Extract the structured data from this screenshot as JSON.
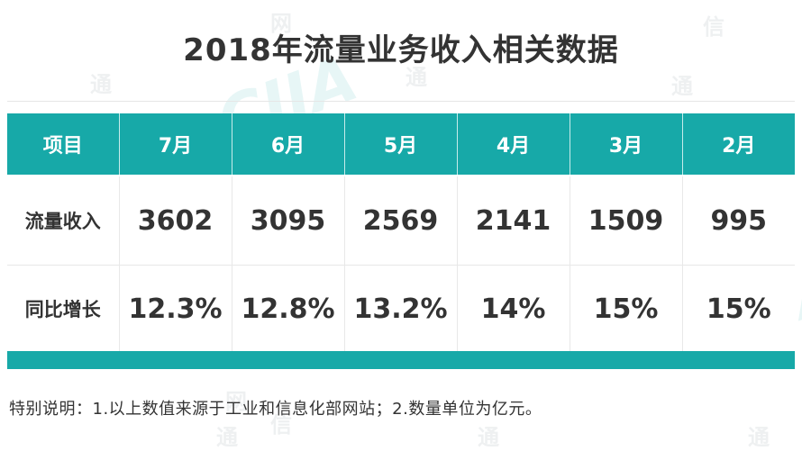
{
  "title": "2018年流量业务收入相关数据",
  "table": {
    "headers": [
      "项目",
      "7月",
      "6月",
      "5月",
      "4月",
      "3月",
      "2月"
    ],
    "rows": [
      {
        "label": "流量收入",
        "values": [
          "3602",
          "3095",
          "2569",
          "2141",
          "1509",
          "995"
        ]
      },
      {
        "label": "同比增长",
        "values": [
          "12.3%",
          "12.8%",
          "13.2%",
          "14%",
          "15%",
          "15%"
        ]
      }
    ]
  },
  "note": "特别说明：1.以上数值来源于工业和信息化部网站；2.数量单位为亿元。",
  "watermark": {
    "chars": [
      "网",
      "信",
      "通"
    ],
    "logo": "CIIA"
  },
  "colors": {
    "accent": "#17a9a8",
    "text": "#333333",
    "header_text": "#ffffff"
  }
}
